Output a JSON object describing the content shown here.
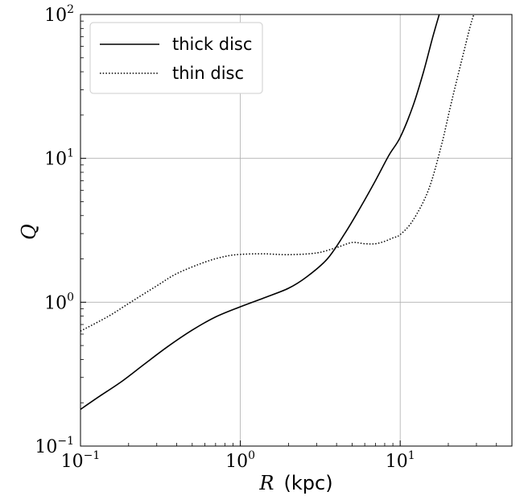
{
  "chart_data": {
    "type": "line",
    "xlabel_symbol": "R",
    "xlabel_unit": "(kpc)",
    "ylabel": "Q",
    "xscale": "log",
    "yscale": "log",
    "xlim": [
      0.1,
      50
    ],
    "ylim": [
      0.1,
      100
    ],
    "grid": true,
    "legend_placement": "top-left",
    "x_ticks": [
      {
        "base": "10",
        "exp": "−1",
        "value": 0.1
      },
      {
        "base": "10",
        "exp": "0",
        "value": 1
      },
      {
        "base": "10",
        "exp": "1",
        "value": 10
      }
    ],
    "y_ticks": [
      {
        "base": "10",
        "exp": "−1",
        "value": 0.1
      },
      {
        "base": "10",
        "exp": "0",
        "value": 1
      },
      {
        "base": "10",
        "exp": "1",
        "value": 10
      },
      {
        "base": "10",
        "exp": "2",
        "value": 100
      }
    ],
    "series": [
      {
        "name": "thick disc",
        "style": "solid",
        "color": "#000000",
        "x": [
          0.1,
          0.13,
          0.18,
          0.25,
          0.35,
          0.5,
          0.7,
          1.0,
          1.4,
          2.0,
          2.6,
          3.5,
          4.5,
          5.6,
          7.0,
          8.5,
          10.0,
          12.0,
          14.0,
          16.0,
          18.0
        ],
        "y": [
          0.18,
          0.22,
          0.28,
          0.37,
          0.49,
          0.64,
          0.79,
          0.93,
          1.07,
          1.25,
          1.5,
          2.0,
          3.0,
          4.5,
          7.0,
          10.5,
          14.0,
          23.0,
          40.0,
          70.0,
          110.0
        ]
      },
      {
        "name": "thin disc",
        "style": "dotted",
        "color": "#000000",
        "x": [
          0.1,
          0.15,
          0.2,
          0.3,
          0.4,
          0.6,
          0.8,
          1.0,
          1.4,
          2.0,
          3.0,
          4.0,
          5.0,
          6.0,
          7.0,
          8.0,
          9.0,
          10.0,
          12.0,
          15.0,
          18.0,
          21.0,
          25.0,
          28.0,
          30.0
        ],
        "y": [
          0.63,
          0.8,
          0.98,
          1.3,
          1.58,
          1.9,
          2.08,
          2.15,
          2.17,
          2.14,
          2.2,
          2.4,
          2.6,
          2.55,
          2.55,
          2.65,
          2.8,
          2.95,
          3.7,
          6.0,
          12.0,
          25.0,
          55.0,
          90.0,
          110.0
        ]
      }
    ]
  }
}
